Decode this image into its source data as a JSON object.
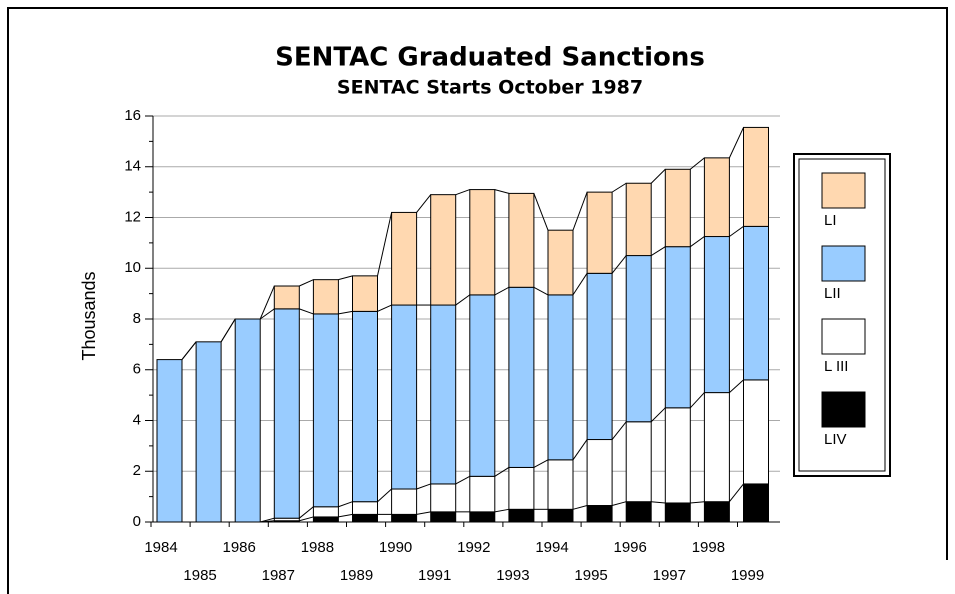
{
  "chart_data": {
    "type": "stacked_bar",
    "title": "SENTAC Graduated Sanctions",
    "subtitle": "SENTAC Starts October 1987",
    "y_label": "Thousands",
    "categories": [
      "1984",
      "1985",
      "1986",
      "1987",
      "1988",
      "1989",
      "1990",
      "1991",
      "1992",
      "1993",
      "1994",
      "1995",
      "1996",
      "1997",
      "1998",
      "1999"
    ],
    "series": [
      {
        "name": "LI",
        "color": "#ffd8b0",
        "values": [
          0,
          0,
          0,
          0.9,
          1.35,
          1.4,
          3.65,
          4.35,
          4.15,
          3.7,
          2.55,
          3.2,
          2.85,
          3.05,
          3.1,
          3.9
        ]
      },
      {
        "name": "LII",
        "color": "#99ccff",
        "values": [
          6.4,
          7.1,
          8.0,
          8.25,
          7.6,
          7.5,
          7.25,
          7.05,
          7.15,
          7.1,
          6.5,
          6.55,
          6.55,
          6.35,
          6.15,
          6.05
        ]
      },
      {
        "name": "L III",
        "color": "#ffffff",
        "values": [
          0,
          0,
          0,
          0.1,
          0.4,
          0.5,
          1.0,
          1.1,
          1.4,
          1.65,
          1.95,
          2.6,
          3.15,
          3.75,
          4.3,
          4.1
        ]
      },
      {
        "name": "LIV",
        "color": "#000000",
        "values": [
          0,
          0,
          0,
          0.05,
          0.2,
          0.3,
          0.3,
          0.4,
          0.4,
          0.5,
          0.5,
          0.65,
          0.8,
          0.75,
          0.8,
          1.5
        ]
      }
    ],
    "ylim": [
      0,
      16
    ],
    "yticks": [
      0,
      2,
      4,
      6,
      8,
      10,
      12,
      14,
      16
    ],
    "grid": true
  }
}
